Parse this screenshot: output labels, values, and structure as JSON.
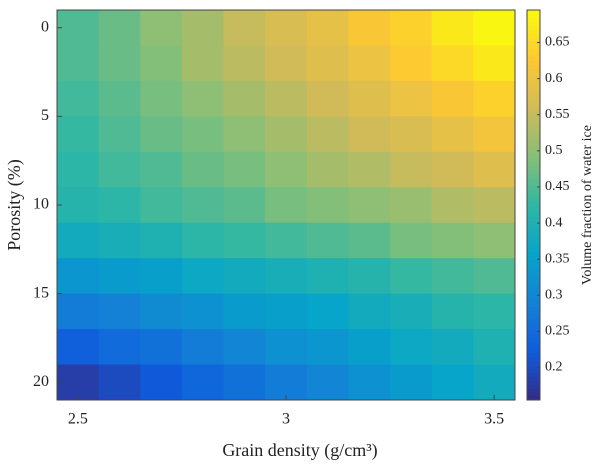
{
  "chart_data": {
    "type": "heatmap",
    "xlabel": "Grain density (g/cm³)",
    "ylabel": "Porosity (%)",
    "colorbar_label": "Volume fraction of water ice",
    "colormap": "parula",
    "x": [
      2.5,
      2.6,
      2.7,
      2.8,
      2.9,
      3.0,
      3.1,
      3.2,
      3.3,
      3.4,
      3.5
    ],
    "y": [
      0,
      2,
      4,
      6,
      8,
      10,
      12,
      14,
      16,
      18,
      20
    ],
    "z": [
      [
        0.45,
        0.47,
        0.5,
        0.52,
        0.55,
        0.57,
        0.59,
        0.62,
        0.64,
        0.67,
        0.69
      ],
      [
        0.45,
        0.47,
        0.49,
        0.52,
        0.54,
        0.56,
        0.58,
        0.6,
        0.63,
        0.65,
        0.67
      ],
      [
        0.44,
        0.46,
        0.48,
        0.5,
        0.52,
        0.54,
        0.56,
        0.58,
        0.6,
        0.62,
        0.64
      ],
      [
        0.43,
        0.45,
        0.47,
        0.48,
        0.5,
        0.52,
        0.54,
        0.56,
        0.57,
        0.59,
        0.61
      ],
      [
        0.42,
        0.44,
        0.45,
        0.47,
        0.48,
        0.5,
        0.52,
        0.53,
        0.55,
        0.56,
        0.58
      ],
      [
        0.41,
        0.42,
        0.44,
        0.45,
        0.46,
        0.48,
        0.49,
        0.5,
        0.51,
        0.53,
        0.54
      ],
      [
        0.38,
        0.39,
        0.4,
        0.42,
        0.43,
        0.44,
        0.45,
        0.46,
        0.48,
        0.49,
        0.5
      ],
      [
        0.33,
        0.34,
        0.35,
        0.37,
        0.38,
        0.39,
        0.4,
        0.41,
        0.43,
        0.44,
        0.45
      ],
      [
        0.28,
        0.29,
        0.31,
        0.32,
        0.34,
        0.35,
        0.36,
        0.38,
        0.39,
        0.41,
        0.42
      ],
      [
        0.23,
        0.25,
        0.26,
        0.28,
        0.3,
        0.32,
        0.33,
        0.35,
        0.37,
        0.38,
        0.4
      ],
      [
        0.18,
        0.2,
        0.22,
        0.24,
        0.26,
        0.28,
        0.3,
        0.32,
        0.34,
        0.36,
        0.38
      ]
    ],
    "xlim": [
      2.45,
      3.55
    ],
    "ylim": [
      -1,
      21
    ],
    "xticks": [
      2.5,
      3,
      3.5
    ],
    "yticks": [
      0,
      5,
      10,
      15,
      20
    ],
    "clim": [
      0.155,
      0.695
    ],
    "cticks": [
      0.2,
      0.25,
      0.3,
      0.35,
      0.4,
      0.45,
      0.5,
      0.55,
      0.6,
      0.65
    ]
  }
}
